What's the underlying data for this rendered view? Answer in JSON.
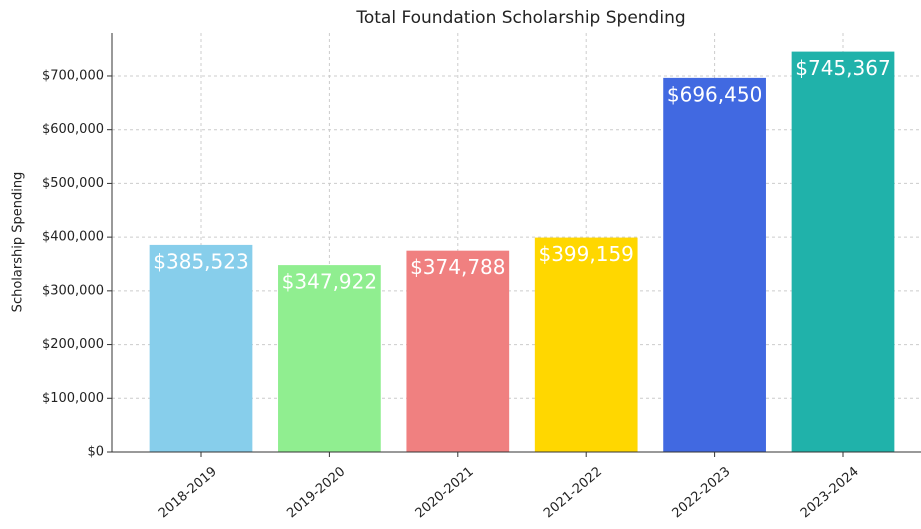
{
  "chart_data": {
    "type": "bar",
    "title": "Total Foundation Scholarship Spending",
    "y_label": "Scholarship Spending",
    "categories": [
      "2018-2019",
      "2019-2020",
      "2020-2021",
      "2021-2022",
      "2022-2023",
      "2023-2024"
    ],
    "values": [
      385523,
      347922,
      374788,
      399159,
      696450,
      745367
    ],
    "value_labels": [
      "$385,523",
      "$347,922",
      "$374,788",
      "$399,159",
      "$696,450",
      "$745,367"
    ],
    "colors": [
      "#87ceeb",
      "#90ee90",
      "#f08080",
      "#ffd700",
      "#4169e1",
      "#20b2aa"
    ],
    "ylim": [
      0,
      780000
    ],
    "yticks": [
      {
        "value": 0,
        "label": "$0"
      },
      {
        "value": 100000,
        "label": "$100,000"
      },
      {
        "value": 200000,
        "label": "$200,000"
      },
      {
        "value": 300000,
        "label": "$300,000"
      },
      {
        "value": 400000,
        "label": "$400,000"
      },
      {
        "value": 500000,
        "label": "$500,000"
      },
      {
        "value": 600000,
        "label": "$600,000"
      },
      {
        "value": 700000,
        "label": "$700,000"
      }
    ],
    "grid": true
  }
}
